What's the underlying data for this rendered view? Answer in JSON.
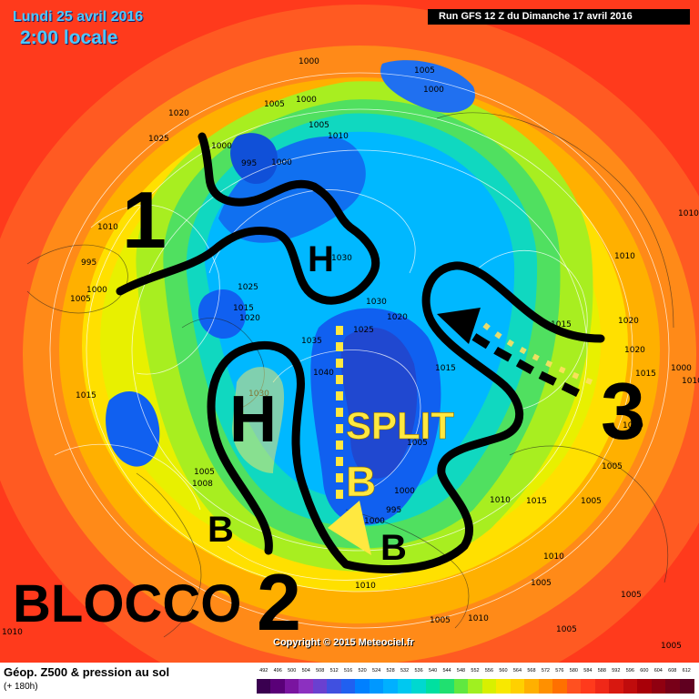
{
  "header": {
    "date": "Lundi 25 avril 2016",
    "time": "2:00 locale",
    "run": "Run GFS 12 Z du Dimanche 17 avril 2016"
  },
  "annotations": {
    "num1": "1",
    "num2": "2",
    "num3": "3",
    "h_north": "H",
    "h_big": "H",
    "b_yellow": "B",
    "b_lower_left": "B",
    "b_lower_right": "B",
    "split": "SPLIT",
    "blocco": "BLOCCO"
  },
  "pressure_labels": [
    "1000",
    "1005",
    "1000",
    "1005",
    "1000",
    "1005",
    "1020",
    "1025",
    "1000",
    "995",
    "1000",
    "1010",
    "1010",
    "995",
    "1005",
    "1000",
    "1030",
    "1025",
    "1015",
    "1020",
    "1030",
    "1025",
    "1020",
    "1035",
    "1040",
    "1030",
    "1015",
    "1005",
    "1015",
    "1008",
    "1000",
    "1005",
    "995",
    "1000",
    "1010",
    "1015",
    "1010",
    "1005",
    "1010",
    "1005",
    "1005",
    "1005",
    "1010",
    "1005",
    "1010",
    "1005",
    "1010",
    "1010",
    "1015",
    "1020",
    "1020",
    "1015",
    "1000",
    "1010",
    "1005",
    "1010"
  ],
  "copyright": "Copyright © 2015 Meteociel.fr",
  "footer": {
    "title": "Géop. Z500 & pression au sol",
    "subtitle": "(+ 180h)"
  },
  "legend": {
    "values": [
      "492",
      "496",
      "500",
      "504",
      "508",
      "512",
      "516",
      "520",
      "524",
      "528",
      "532",
      "536",
      "540",
      "544",
      "548",
      "552",
      "556",
      "560",
      "564",
      "568",
      "572",
      "576",
      "580",
      "584",
      "588",
      "592",
      "596",
      "600",
      "604",
      "608",
      "612"
    ],
    "colors": [
      "#3a0050",
      "#5a0078",
      "#7a14a0",
      "#8c30c0",
      "#6a40d0",
      "#4050e0",
      "#2060f0",
      "#0080ff",
      "#0098ff",
      "#00b0ff",
      "#00c8f0",
      "#00d8d0",
      "#00e0a0",
      "#20e070",
      "#60e840",
      "#a0f020",
      "#d8f000",
      "#f8e800",
      "#ffd000",
      "#ffb000",
      "#ff9000",
      "#ff7000",
      "#ff5020",
      "#ff3a1c",
      "#f02818",
      "#d81810",
      "#c00c0c",
      "#a80008",
      "#900010",
      "#780018",
      "#600020"
    ]
  }
}
